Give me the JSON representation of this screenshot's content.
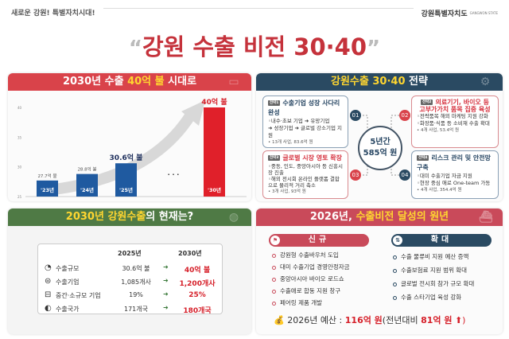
{
  "header": {
    "slogan": "새로운 강원! 특별자치시대!",
    "logo": "강원특별자치도",
    "logo_en": "GANGWON STATE",
    "title": "강원 수출 비전 30·40",
    "quote_open": "“",
    "quote_close": "”"
  },
  "export_panel": {
    "title_a": "2030년 수출 ",
    "title_b": "40억 불",
    "title_c": " 시대로",
    "icon": "money-icon",
    "ellipsis": "· · ·"
  },
  "chart_data": {
    "type": "bar",
    "categories": [
      "'23년",
      "'24년",
      "'25년",
      "'30년"
    ],
    "values": [
      27.7,
      28.8,
      30.6,
      40
    ],
    "labels": [
      "27.7억 불",
      "28.8억 불",
      "30.6억 불",
      "40억 불"
    ],
    "yticks": [
      25,
      30,
      35,
      40
    ],
    "ylim": [
      25,
      40
    ],
    "colors": [
      "#1f5aa0",
      "#1f5aa0",
      "#1f5aa0",
      "#e0202a"
    ],
    "grid": false
  },
  "strategy": {
    "title_a": "강원수출 30·40",
    "title_b": " 전략",
    "icon": "gear-icon",
    "center_a": "5년간",
    "center_b": "585억 원",
    "items": [
      {
        "tag": "전략1",
        "num": "01",
        "title": "수출기업 성장 사다리 완성",
        "lines": [
          "◦내수·초보 기업 ➜ 유망기업",
          "➜ 성장기업 ➜ 글로벌 강소기업 지원"
        ],
        "note": "• 13개 사업, 83.6억 원"
      },
      {
        "tag": "전략2",
        "num": "02",
        "title": "의료기기, 바이오 등 고부가가치 품목 집중 육성",
        "lines": [
          "◦전략품목 해외 마케팅 지원 강화",
          "◦화장품·식품 등 소비재 수출 확대"
        ],
        "note": "• 4개 사업, 53.4억 원"
      },
      {
        "tag": "전략3",
        "num": "03",
        "title": "글로벌 시장 영토 확장",
        "lines": [
          "◦중동, 인도, 중앙아시아 등 신흥시장 진출",
          "◦해외 전시회 온라인 플랫폼 결합으로 물리적 거리 축소"
        ],
        "note": "• 3개 사업, 93억 원"
      },
      {
        "tag": "전략4",
        "num": "04",
        "title": "리스크 관리 및 안전망 구축",
        "lines": [
          "◦대미 수출기업 자금 지원",
          "◦현장 중심 애로 One-team 가동"
        ],
        "note": "• 4개 사업, 354.4억 원"
      }
    ]
  },
  "current": {
    "title_a": "2030년 강원수출",
    "title_b": "의 현재는?",
    "icon": "globe-icon",
    "col1": "2025년",
    "col2": "2030년",
    "rows": [
      {
        "icon": "pie-chart-icon",
        "label": "수출규모",
        "v2025": "30.6억 불",
        "v2030": "40억 불"
      },
      {
        "icon": "company-icon",
        "label": "수출기업",
        "v2025": "1,085개사",
        "v2030": "1,200개사"
      },
      {
        "icon": "building-icon",
        "label": "중간·소규모 기업",
        "v2025": "19%",
        "v2030": "25%"
      },
      {
        "icon": "globe-small-icon",
        "label": "수출국가",
        "v2025": "171개국",
        "v2030": "180개국"
      }
    ]
  },
  "plan": {
    "title_a": "2026년, ",
    "title_b": "수출비전 달성의 원년",
    "icon": "ship-icon",
    "new_label": "신규",
    "expand_label": "확대",
    "new_items": [
      "강원형 수출바우처 도입",
      "대미 수출기업 경영안정자금",
      "중앙아시아 바이오 로드쇼",
      "수출애로 합동 지원 창구",
      "페어링 제품 개발"
    ],
    "expand_items": [
      "수출 물류비 지원 예산 증액",
      "수출보험료 지원 범위 확대",
      "글로벌 전시회 참가 규모 확대",
      "수출 스타기업 육성 강화"
    ],
    "budget_a": "2026년 예산 : ",
    "budget_b": "116억 원",
    "budget_c": "(전년대비 ",
    "budget_d": "81억 원",
    "budget_e": " ⬆)"
  }
}
